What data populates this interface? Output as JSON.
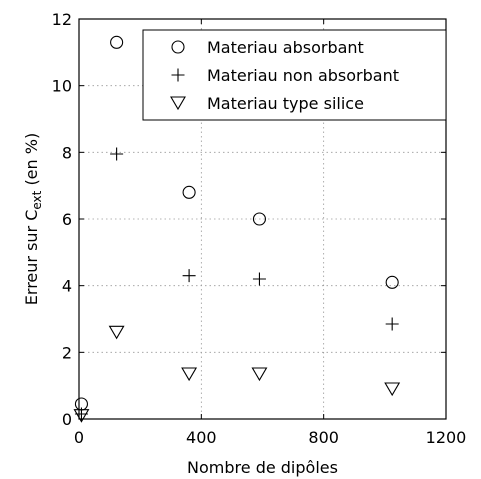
{
  "chart_data": {
    "type": "scatter",
    "title": "",
    "xlabel": "Nombre de dipôles",
    "ylabel": {
      "main": "Erreur sur C",
      "sub": "ext",
      "tail": " (en %)"
    },
    "xlim": [
      0,
      1200
    ],
    "ylim": [
      0,
      12
    ],
    "xticks": [
      0,
      400,
      800,
      1200
    ],
    "yticks": [
      0,
      2,
      4,
      6,
      8,
      10,
      12
    ],
    "grid": true,
    "legend_position": "top-right",
    "series": [
      {
        "name": "Materiau absorbant",
        "marker": "circle",
        "x": [
          8,
          123,
          360,
          590,
          1024
        ],
        "y": [
          0.45,
          11.3,
          6.8,
          6.0,
          4.1
        ]
      },
      {
        "name": "Materiau non absorbant",
        "marker": "plus",
        "x": [
          8,
          123,
          360,
          590,
          1024
        ],
        "y": [
          0.15,
          7.95,
          4.3,
          4.2,
          2.85
        ]
      },
      {
        "name": "Materiau type silice",
        "marker": "triangle-down",
        "x": [
          8,
          123,
          360,
          590,
          1024
        ],
        "y": [
          0.1,
          2.6,
          1.35,
          1.35,
          0.9
        ]
      }
    ]
  }
}
